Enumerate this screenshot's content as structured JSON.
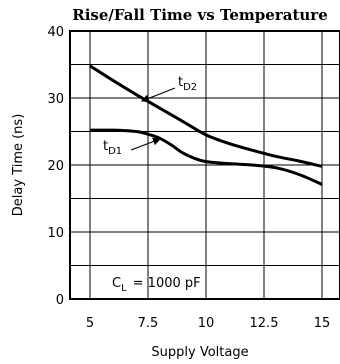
{
  "chart_data": {
    "type": "line",
    "title": "Rise/Fall Time vs Temperature",
    "xlabel": "Supply Voltage",
    "ylabel": "Delay Time (ns)",
    "xlim": [
      5,
      15
    ],
    "ylim": [
      0,
      40
    ],
    "x_ticks": [
      "5",
      "7.5",
      "10",
      "12.5",
      "15"
    ],
    "y_ticks": [
      "0",
      "10",
      "20",
      "30",
      "40"
    ],
    "grid": true,
    "series": [
      {
        "name": "tD2",
        "x": [
          5,
          6,
          7,
          7.5,
          8,
          9,
          10,
          11,
          12,
          13,
          14,
          15
        ],
        "y": [
          34.8,
          32.6,
          30.5,
          29.5,
          28.5,
          26.5,
          24.5,
          23.2,
          22.2,
          21.3,
          20.6,
          19.8
        ]
      },
      {
        "name": "tD1",
        "x": [
          5,
          6,
          7,
          7.5,
          8,
          8.5,
          9,
          9.5,
          10,
          11,
          12,
          13,
          14,
          15
        ],
        "y": [
          25.2,
          25.2,
          25.0,
          24.6,
          24.0,
          23.0,
          21.8,
          21.0,
          20.5,
          20.2,
          20.0,
          19.6,
          18.6,
          17.1
        ]
      }
    ],
    "labels": {
      "tD2": {
        "main": "t",
        "sub": "D2"
      },
      "tD1": {
        "main": "t",
        "sub": "D1"
      },
      "cl_main": "C",
      "cl_sub": "L",
      "cl_value": "=  1000 pF"
    }
  }
}
